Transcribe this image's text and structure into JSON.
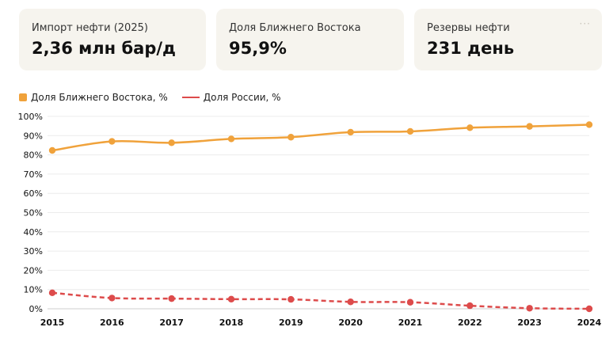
{
  "cards": [
    {
      "label": "Импорт нефти (2025)",
      "value": "2,36 млн бар/д"
    },
    {
      "label": "Доля Ближнего Востока",
      "value": "95,9%"
    },
    {
      "label": "Резервы нефти",
      "value": "231 день",
      "menu": "···"
    }
  ],
  "chart_data": {
    "type": "line",
    "x": [
      "2015",
      "2016",
      "2017",
      "2018",
      "2019",
      "2020",
      "2021",
      "2022",
      "2023",
      "2024"
    ],
    "series": [
      {
        "name": "Доля Ближнего Востока, %",
        "color": "#f0a23b",
        "style": "solid",
        "values": [
          82.3,
          87.0,
          86.3,
          88.3,
          89.2,
          91.8,
          92.2,
          94.1,
          94.8,
          95.7
        ]
      },
      {
        "name": "Доля России, %",
        "color": "#dd4b4b",
        "style": "dashed",
        "values": [
          8.3,
          5.6,
          5.3,
          5.0,
          4.9,
          3.6,
          3.4,
          1.6,
          0.3,
          0.0
        ]
      }
    ],
    "ylim": [
      0,
      100
    ],
    "yticks": [
      "0%",
      "10%",
      "20%",
      "30%",
      "40%",
      "50%",
      "60%",
      "70%",
      "80%",
      "90%",
      "100%"
    ],
    "grid": true,
    "legend": "top-left"
  }
}
